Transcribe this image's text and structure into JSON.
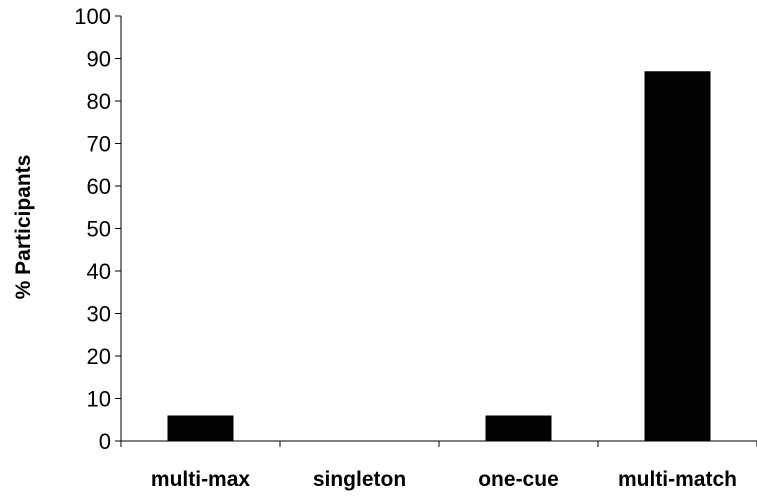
{
  "chart_data": {
    "type": "bar",
    "title": "",
    "xlabel": "",
    "ylabel": "% Participants",
    "categories": [
      "multi-max",
      "singleton",
      "one-cue",
      "multi-match"
    ],
    "values": [
      6,
      0,
      6,
      87
    ],
    "ylim": [
      0,
      100
    ],
    "yticks": [
      0,
      10,
      20,
      30,
      40,
      50,
      60,
      70,
      80,
      90,
      100
    ],
    "grid": false,
    "legend": "none",
    "bar_color": "#000000"
  }
}
